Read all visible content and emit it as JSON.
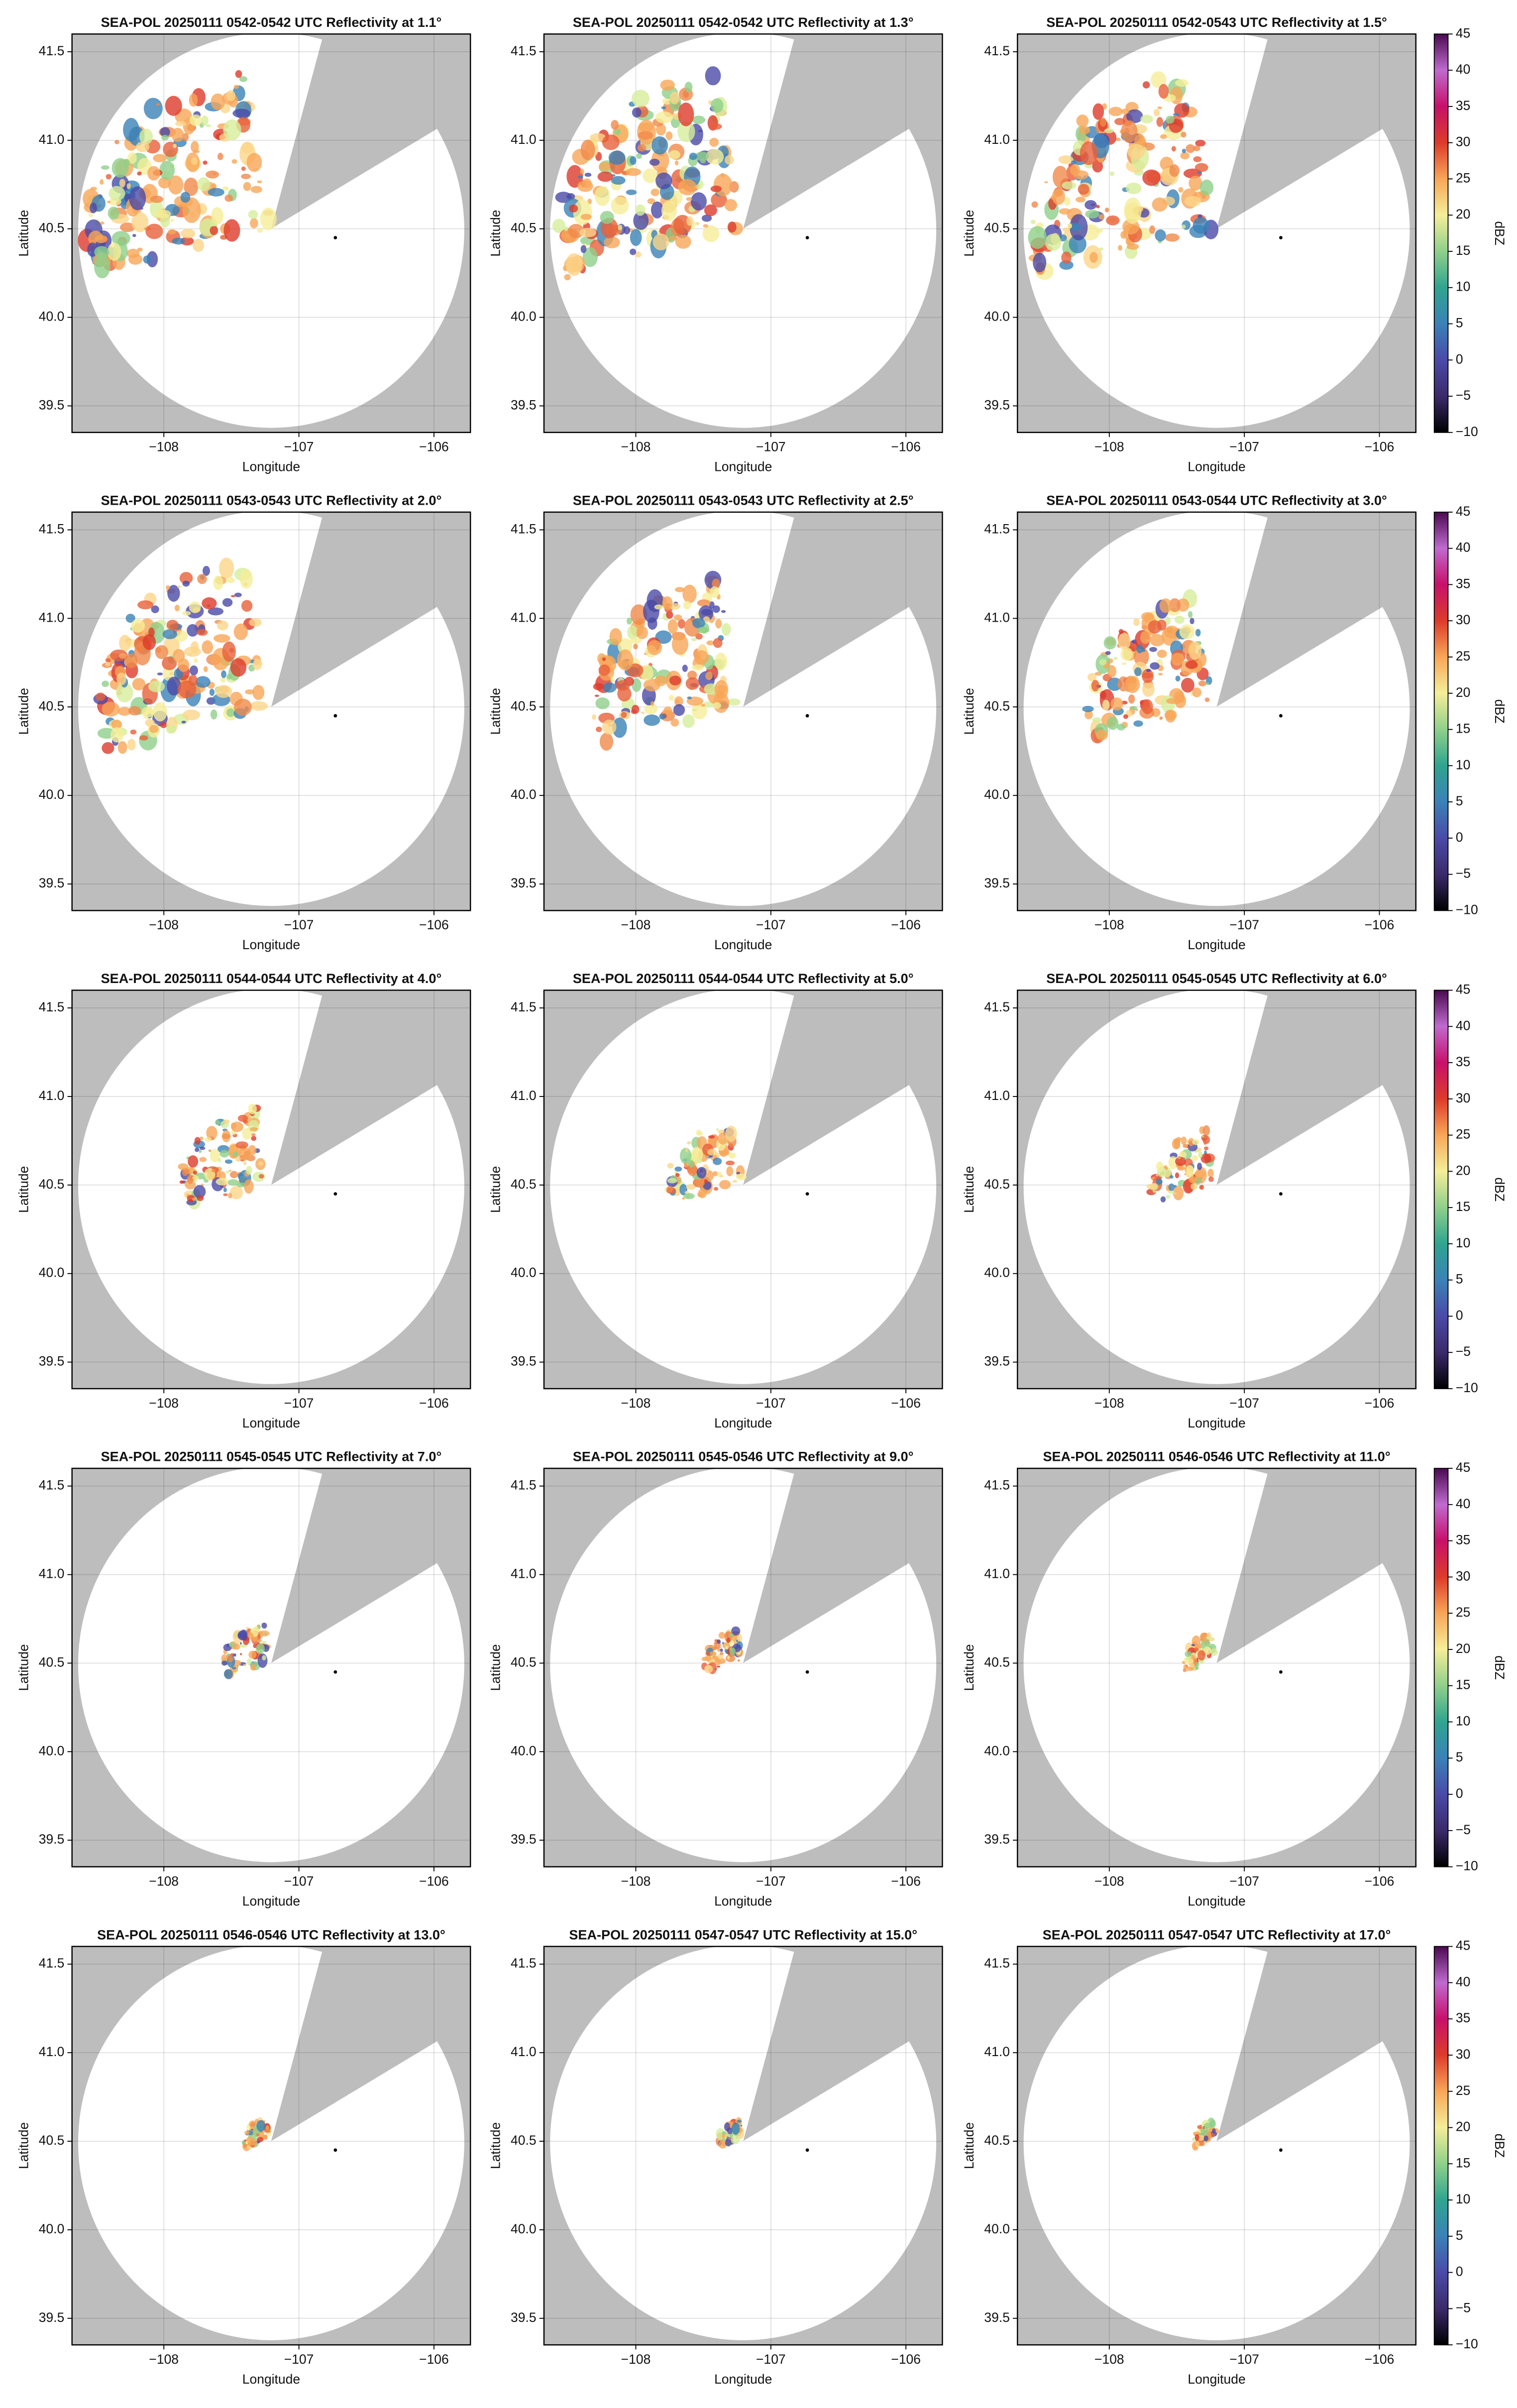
{
  "chart_data": [
    {
      "type": "radar",
      "title": "SEA-POL 20250111 0542-0542 UTC Reflectivity at 1.1°",
      "xlabel": "Longitude",
      "ylabel": "Latitude",
      "xlim": [
        -108.68,
        -105.73
      ],
      "ylim": [
        39.35,
        41.6
      ],
      "xticks": [
        {
          "value": -108,
          "label": "−108"
        },
        {
          "value": -107,
          "label": "−107"
        },
        {
          "value": -106,
          "label": "−106"
        }
      ],
      "yticks": [
        39.5,
        {
          "value": 40,
          "label": "40.0"
        },
        40.5,
        {
          "value": 41,
          "label": "41.0"
        },
        41.5
      ],
      "grid": true
    },
    {
      "type": "radar",
      "title": "SEA-POL 20250111 0542-0542 UTC Reflectivity at 1.3°",
      "xlabel": "Longitude",
      "ylabel": "Latitude",
      "xlim": [
        -108.68,
        -105.73
      ],
      "ylim": [
        39.35,
        41.6
      ],
      "xticks": [
        {
          "value": -108,
          "label": "−108"
        },
        {
          "value": -107,
          "label": "−107"
        },
        {
          "value": -106,
          "label": "−106"
        }
      ],
      "yticks": [
        39.5,
        {
          "value": 40,
          "label": "40.0"
        },
        40.5,
        {
          "value": 41,
          "label": "41.0"
        },
        41.5
      ],
      "grid": true
    },
    {
      "type": "radar",
      "title": "SEA-POL 20250111 0542-0543 UTC Reflectivity at 1.5°",
      "xlabel": "Longitude",
      "ylabel": "Latitude",
      "xlim": [
        -108.68,
        -105.73
      ],
      "ylim": [
        39.35,
        41.6
      ],
      "xticks": [
        {
          "value": -108,
          "label": "−108"
        },
        {
          "value": -107,
          "label": "−107"
        },
        {
          "value": -106,
          "label": "−106"
        }
      ],
      "yticks": [
        39.5,
        {
          "value": 40,
          "label": "40.0"
        },
        40.5,
        {
          "value": 41,
          "label": "41.0"
        },
        41.5
      ],
      "grid": true,
      "colorbar": {
        "label": "dBZ",
        "lim": [
          -10,
          45
        ],
        "ticks": [
          {
            "value": -10,
            "label": "−10"
          },
          {
            "value": -5,
            "label": "−5"
          },
          0,
          5,
          10,
          15,
          20,
          25,
          30,
          35,
          40,
          45
        ],
        "colormap": [
          "#000000",
          "#3b2a6b",
          "#4a4aa8",
          "#3a82b8",
          "#2fa58f",
          "#8fd08a",
          "#f5ee98",
          "#f8a657",
          "#dd3b2a",
          "#c8106a",
          "#c06ad0",
          "#4a0a50"
        ]
      }
    },
    {
      "type": "radar",
      "title": "SEA-POL 20250111 0543-0543 UTC Reflectivity at 2.0°",
      "xlabel": "Longitude",
      "ylabel": "Latitude",
      "xlim": [
        -108.68,
        -105.73
      ],
      "ylim": [
        39.35,
        41.6
      ],
      "xticks": [
        {
          "value": -108,
          "label": "−108"
        },
        {
          "value": -107,
          "label": "−107"
        },
        {
          "value": -106,
          "label": "−106"
        }
      ],
      "yticks": [
        39.5,
        {
          "value": 40,
          "label": "40.0"
        },
        40.5,
        {
          "value": 41,
          "label": "41.0"
        },
        41.5
      ],
      "grid": true
    },
    {
      "type": "radar",
      "title": "SEA-POL 20250111 0543-0543 UTC Reflectivity at 2.5°",
      "xlabel": "Longitude",
      "ylabel": "Latitude",
      "xlim": [
        -108.68,
        -105.73
      ],
      "ylim": [
        39.35,
        41.6
      ],
      "xticks": [
        {
          "value": -108,
          "label": "−108"
        },
        {
          "value": -107,
          "label": "−107"
        },
        {
          "value": -106,
          "label": "−106"
        }
      ],
      "yticks": [
        39.5,
        {
          "value": 40,
          "label": "40.0"
        },
        40.5,
        {
          "value": 41,
          "label": "41.0"
        },
        41.5
      ],
      "grid": true
    },
    {
      "type": "radar",
      "title": "SEA-POL 20250111 0543-0544 UTC Reflectivity at 3.0°",
      "xlabel": "Longitude",
      "ylabel": "Latitude",
      "xlim": [
        -108.68,
        -105.73
      ],
      "ylim": [
        39.35,
        41.6
      ],
      "xticks": [
        {
          "value": -108,
          "label": "−108"
        },
        {
          "value": -107,
          "label": "−107"
        },
        {
          "value": -106,
          "label": "−106"
        }
      ],
      "yticks": [
        39.5,
        {
          "value": 40,
          "label": "40.0"
        },
        40.5,
        {
          "value": 41,
          "label": "41.0"
        },
        41.5
      ],
      "grid": true,
      "colorbar": {
        "label": "dBZ",
        "lim": [
          -10,
          45
        ],
        "ticks": [
          {
            "value": -10,
            "label": "−10"
          },
          {
            "value": -5,
            "label": "−5"
          },
          0,
          5,
          10,
          15,
          20,
          25,
          30,
          35,
          40,
          45
        ],
        "colormap": [
          "#000000",
          "#3b2a6b",
          "#4a4aa8",
          "#3a82b8",
          "#2fa58f",
          "#8fd08a",
          "#f5ee98",
          "#f8a657",
          "#dd3b2a",
          "#c8106a",
          "#c06ad0",
          "#4a0a50"
        ]
      }
    },
    {
      "type": "radar",
      "title": "SEA-POL 20250111 0544-0544 UTC Reflectivity at 4.0°",
      "xlabel": "Longitude",
      "ylabel": "Latitude",
      "xlim": [
        -108.68,
        -105.73
      ],
      "ylim": [
        39.35,
        41.6
      ],
      "xticks": [
        {
          "value": -108,
          "label": "−108"
        },
        {
          "value": -107,
          "label": "−107"
        },
        {
          "value": -106,
          "label": "−106"
        }
      ],
      "yticks": [
        39.5,
        {
          "value": 40,
          "label": "40.0"
        },
        40.5,
        {
          "value": 41,
          "label": "41.0"
        },
        41.5
      ],
      "grid": true
    },
    {
      "type": "radar",
      "title": "SEA-POL 20250111 0544-0544 UTC Reflectivity at 5.0°",
      "xlabel": "Longitude",
      "ylabel": "Latitude",
      "xlim": [
        -108.68,
        -105.73
      ],
      "ylim": [
        39.35,
        41.6
      ],
      "xticks": [
        {
          "value": -108,
          "label": "−108"
        },
        {
          "value": -107,
          "label": "−107"
        },
        {
          "value": -106,
          "label": "−106"
        }
      ],
      "yticks": [
        39.5,
        {
          "value": 40,
          "label": "40.0"
        },
        40.5,
        {
          "value": 41,
          "label": "41.0"
        },
        41.5
      ],
      "grid": true
    },
    {
      "type": "radar",
      "title": "SEA-POL 20250111 0545-0545 UTC Reflectivity at 6.0°",
      "xlabel": "Longitude",
      "ylabel": "Latitude",
      "xlim": [
        -108.68,
        -105.73
      ],
      "ylim": [
        39.35,
        41.6
      ],
      "xticks": [
        {
          "value": -108,
          "label": "−108"
        },
        {
          "value": -107,
          "label": "−107"
        },
        {
          "value": -106,
          "label": "−106"
        }
      ],
      "yticks": [
        39.5,
        {
          "value": 40,
          "label": "40.0"
        },
        40.5,
        {
          "value": 41,
          "label": "41.0"
        },
        41.5
      ],
      "grid": true,
      "colorbar": {
        "label": "dBZ",
        "lim": [
          -10,
          45
        ],
        "ticks": [
          {
            "value": -10,
            "label": "−10"
          },
          {
            "value": -5,
            "label": "−5"
          },
          0,
          5,
          10,
          15,
          20,
          25,
          30,
          35,
          40,
          45
        ],
        "colormap": [
          "#000000",
          "#3b2a6b",
          "#4a4aa8",
          "#3a82b8",
          "#2fa58f",
          "#8fd08a",
          "#f5ee98",
          "#f8a657",
          "#dd3b2a",
          "#c8106a",
          "#c06ad0",
          "#4a0a50"
        ]
      }
    },
    {
      "type": "radar",
      "title": "SEA-POL 20250111 0545-0545 UTC Reflectivity at 7.0°",
      "xlabel": "Longitude",
      "ylabel": "Latitude",
      "xlim": [
        -108.68,
        -105.73
      ],
      "ylim": [
        39.35,
        41.6
      ],
      "xticks": [
        {
          "value": -108,
          "label": "−108"
        },
        {
          "value": -107,
          "label": "−107"
        },
        {
          "value": -106,
          "label": "−106"
        }
      ],
      "yticks": [
        39.5,
        {
          "value": 40,
          "label": "40.0"
        },
        40.5,
        {
          "value": 41,
          "label": "41.0"
        },
        41.5
      ],
      "grid": true
    },
    {
      "type": "radar",
      "title": "SEA-POL 20250111 0545-0546 UTC Reflectivity at 9.0°",
      "xlabel": "Longitude",
      "ylabel": "Latitude",
      "xlim": [
        -108.68,
        -105.73
      ],
      "ylim": [
        39.35,
        41.6
      ],
      "xticks": [
        {
          "value": -108,
          "label": "−108"
        },
        {
          "value": -107,
          "label": "−107"
        },
        {
          "value": -106,
          "label": "−106"
        }
      ],
      "yticks": [
        39.5,
        {
          "value": 40,
          "label": "40.0"
        },
        40.5,
        {
          "value": 41,
          "label": "41.0"
        },
        41.5
      ],
      "grid": true
    },
    {
      "type": "radar",
      "title": "SEA-POL 20250111 0546-0546 UTC Reflectivity at 11.0°",
      "xlabel": "Longitude",
      "ylabel": "Latitude",
      "xlim": [
        -108.68,
        -105.73
      ],
      "ylim": [
        39.35,
        41.6
      ],
      "xticks": [
        {
          "value": -108,
          "label": "−108"
        },
        {
          "value": -107,
          "label": "−107"
        },
        {
          "value": -106,
          "label": "−106"
        }
      ],
      "yticks": [
        39.5,
        {
          "value": 40,
          "label": "40.0"
        },
        40.5,
        {
          "value": 41,
          "label": "41.0"
        },
        41.5
      ],
      "grid": true,
      "colorbar": {
        "label": "dBZ",
        "lim": [
          -10,
          45
        ],
        "ticks": [
          {
            "value": -10,
            "label": "−10"
          },
          {
            "value": -5,
            "label": "−5"
          },
          0,
          5,
          10,
          15,
          20,
          25,
          30,
          35,
          40,
          45
        ],
        "colormap": [
          "#000000",
          "#3b2a6b",
          "#4a4aa8",
          "#3a82b8",
          "#2fa58f",
          "#8fd08a",
          "#f5ee98",
          "#f8a657",
          "#dd3b2a",
          "#c8106a",
          "#c06ad0",
          "#4a0a50"
        ]
      }
    },
    {
      "type": "radar",
      "title": "SEA-POL 20250111 0546-0546 UTC Reflectivity at 13.0°",
      "xlabel": "Longitude",
      "ylabel": "Latitude",
      "xlim": [
        -108.68,
        -105.73
      ],
      "ylim": [
        39.35,
        41.6
      ],
      "xticks": [
        {
          "value": -108,
          "label": "−108"
        },
        {
          "value": -107,
          "label": "−107"
        },
        {
          "value": -106,
          "label": "−106"
        }
      ],
      "yticks": [
        39.5,
        {
          "value": 40,
          "label": "40.0"
        },
        40.5,
        {
          "value": 41,
          "label": "41.0"
        },
        41.5
      ],
      "grid": true
    },
    {
      "type": "radar",
      "title": "SEA-POL 20250111 0547-0547 UTC Reflectivity at 15.0°",
      "xlabel": "Longitude",
      "ylabel": "Latitude",
      "xlim": [
        -108.68,
        -105.73
      ],
      "ylim": [
        39.35,
        41.6
      ],
      "xticks": [
        {
          "value": -108,
          "label": "−108"
        },
        {
          "value": -107,
          "label": "−107"
        },
        {
          "value": -106,
          "label": "−106"
        }
      ],
      "yticks": [
        39.5,
        {
          "value": 40,
          "label": "40.0"
        },
        40.5,
        {
          "value": 41,
          "label": "41.0"
        },
        41.5
      ],
      "grid": true
    },
    {
      "type": "radar",
      "title": "SEA-POL 20250111 0547-0547 UTC Reflectivity at 17.0°",
      "xlabel": "Longitude",
      "ylabel": "Latitude",
      "xlim": [
        -108.68,
        -105.73
      ],
      "ylim": [
        39.35,
        41.6
      ],
      "xticks": [
        {
          "value": -108,
          "label": "−108"
        },
        {
          "value": -107,
          "label": "−107"
        },
        {
          "value": -106,
          "label": "−106"
        }
      ],
      "yticks": [
        39.5,
        {
          "value": 40,
          "label": "40.0"
        },
        40.5,
        {
          "value": 41,
          "label": "41.0"
        },
        41.5
      ],
      "grid": true,
      "colorbar": {
        "label": "dBZ",
        "lim": [
          -10,
          45
        ],
        "ticks": [
          {
            "value": -10,
            "label": "−10"
          },
          {
            "value": -5,
            "label": "−5"
          },
          0,
          5,
          10,
          15,
          20,
          25,
          30,
          35,
          40,
          45
        ],
        "colormap": [
          "#000000",
          "#3b2a6b",
          "#4a4aa8",
          "#3a82b8",
          "#2fa58f",
          "#8fd08a",
          "#f5ee98",
          "#f8a657",
          "#dd3b2a",
          "#c8106a",
          "#c06ad0",
          "#4a0a50"
        ]
      }
    }
  ]
}
